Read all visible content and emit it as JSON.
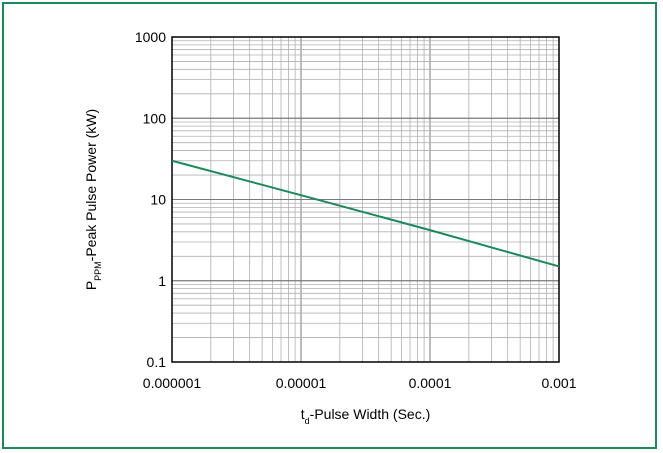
{
  "chart_data": {
    "type": "line",
    "x_scale": "log",
    "y_scale": "log",
    "xlim": [
      1e-06,
      0.001
    ],
    "ylim": [
      0.1,
      1000
    ],
    "grid": true,
    "x_ticks": [
      "0.000001",
      "0.00001",
      "0.0001",
      "0.001"
    ],
    "y_ticks": [
      "1000",
      "100",
      "10",
      "1",
      "0.1"
    ],
    "xlabel": {
      "main": "t",
      "sub": "d",
      "rest": "-Pulse Width (Sec.)"
    },
    "ylabel": {
      "main": "P",
      "sub": "PPM",
      "rest": "-Peak Pulse Power (kW)"
    },
    "series": [
      {
        "x": [
          1e-06,
          1e-05,
          0.0001,
          0.001
        ],
        "y": [
          30,
          11.3,
          4.2,
          1.5
        ]
      }
    ],
    "colors": {
      "line": "#1a8a5a",
      "frame": "#1a8a5a",
      "grid": "#b0b0b0",
      "axis": "#000000"
    }
  }
}
